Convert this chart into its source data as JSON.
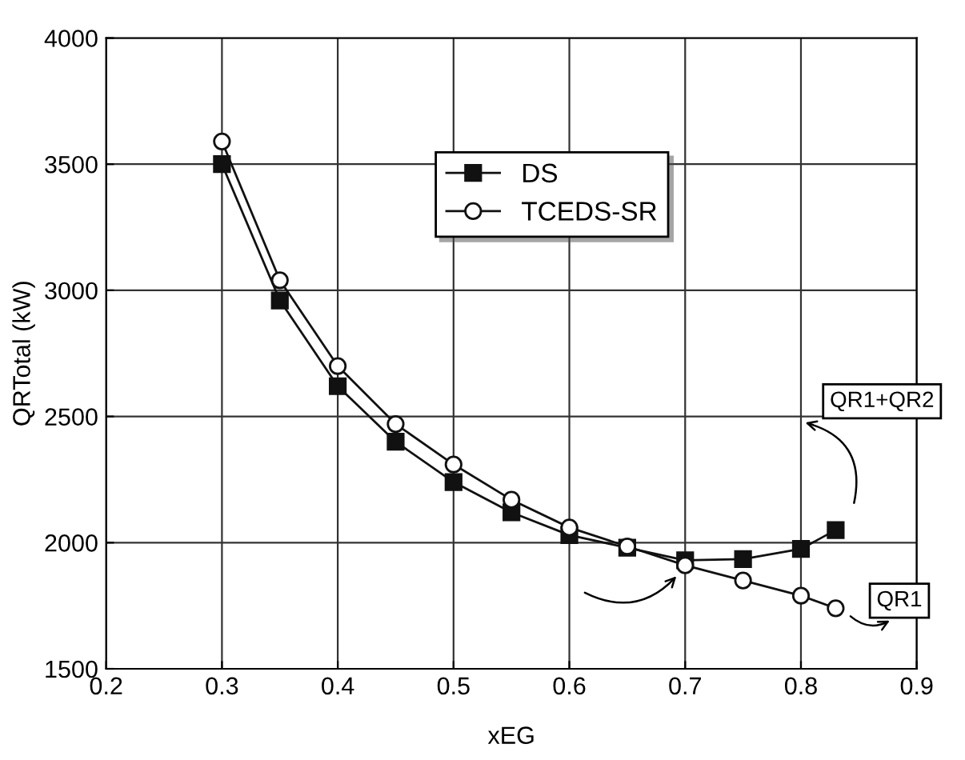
{
  "chart_data": {
    "type": "line",
    "xlabel": "xEG",
    "ylabel": "QRTotal (kW)",
    "x": [
      0.3,
      0.35,
      0.4,
      0.45,
      0.5,
      0.55,
      0.6,
      0.65,
      0.7,
      0.75,
      0.8,
      0.83
    ],
    "series": [
      {
        "name": "DS",
        "color": "#111111",
        "marker": "square",
        "values": [
          3500,
          2960,
          2620,
          2400,
          2240,
          2120,
          2030,
          1980,
          1930,
          1935,
          1975,
          2050
        ]
      },
      {
        "name": "TCEDS-SR",
        "color": "#111111",
        "marker": "circle",
        "values": [
          3590,
          3040,
          2700,
          2470,
          2310,
          2170,
          2060,
          1985,
          1910,
          1850,
          1790,
          1740
        ]
      }
    ],
    "annotations": [
      "QR1+QR2",
      "QR1"
    ],
    "xlim": [
      0.2,
      0.9
    ],
    "ylim": [
      1500,
      4000
    ],
    "xticks": [
      0.2,
      0.3,
      0.4,
      0.5,
      0.6,
      0.7,
      0.8,
      0.9
    ],
    "yticks": [
      1500,
      2000,
      2500,
      3000,
      3500,
      4000
    ],
    "grid": true,
    "legend": "top",
    "line_style": "solid"
  }
}
